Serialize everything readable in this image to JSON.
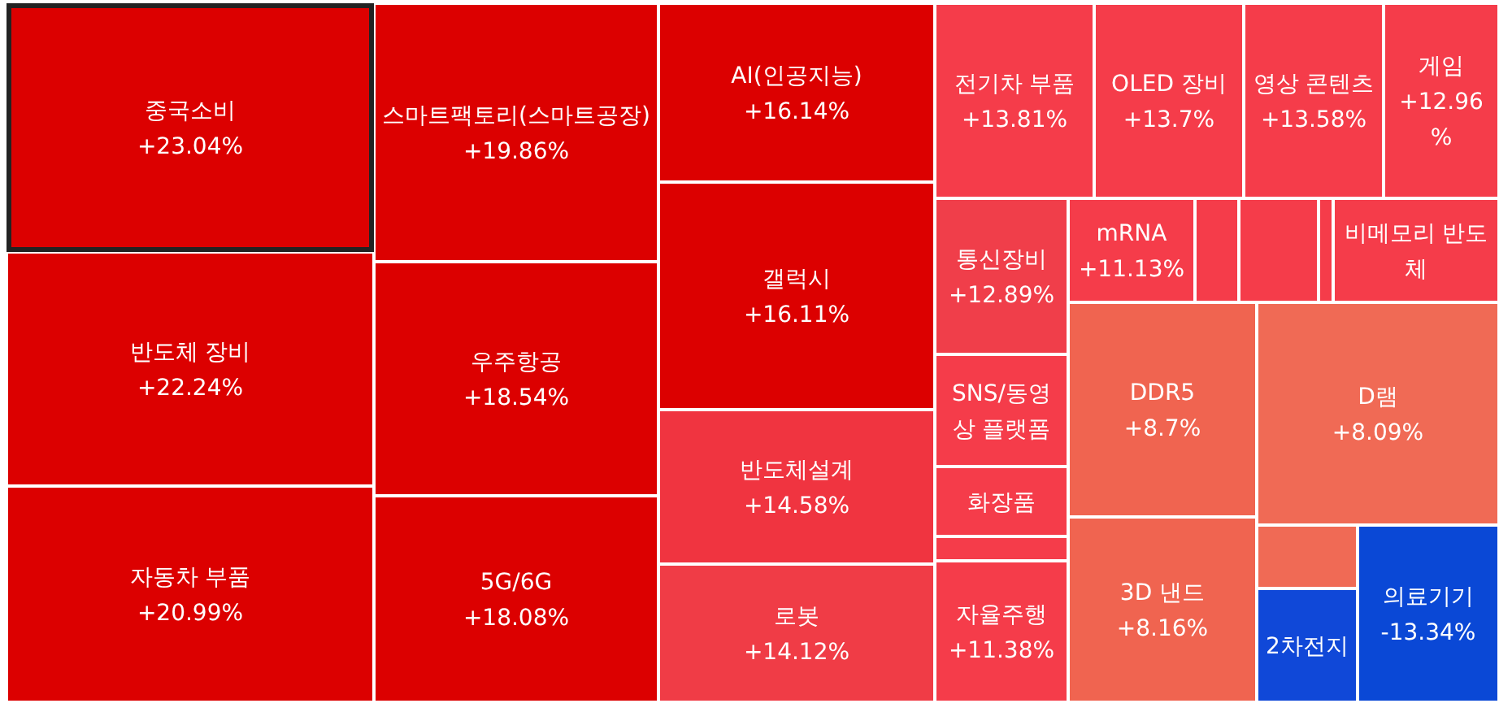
{
  "chart_data": {
    "type": "other",
    "categories": [
      "중국소비",
      "반도체 장비",
      "자동차 부품",
      "스마트팩토리(스마트공장)",
      "우주항공",
      "5G/6G",
      "AI(인공지능)",
      "갤럭시",
      "반도체설계",
      "로봇",
      "전기차 부품",
      "OLED 장비",
      "영상 콘텐츠",
      "게임",
      "통신장비",
      "mRNA",
      null,
      null,
      null,
      "비메모리 반도체",
      "SNS/동영상 플랫폼",
      "화장품",
      null,
      "자율주행",
      "DDR5",
      "D램",
      "3D 낸드",
      null,
      "2차전지",
      "의료기기"
    ],
    "values": [
      23.04,
      22.24,
      20.99,
      19.86,
      18.54,
      18.08,
      16.14,
      16.11,
      14.58,
      14.12,
      13.81,
      13.7,
      13.58,
      12.96,
      12.89,
      11.13,
      null,
      null,
      null,
      null,
      null,
      null,
      null,
      11.38,
      8.7,
      8.09,
      8.16,
      null,
      null,
      -13.34
    ],
    "value_labels": [
      "+23.04%",
      "+22.24%",
      "+20.99%",
      "+19.86%",
      "+18.54%",
      "+18.08%",
      "+16.14%",
      "+16.11%",
      "+14.58%",
      "+14.12%",
      "+13.81%",
      "+13.7%",
      "+13.58%",
      "+12.96%",
      "+12.89%",
      "+11.13%",
      null,
      null,
      null,
      null,
      null,
      null,
      null,
      "+11.38%",
      "+8.7%",
      "+8.09%",
      "+8.16%",
      null,
      null,
      "-13.34%"
    ],
    "colors": [
      "#dc0000",
      "#dc0000",
      "#dc0000",
      "#dc0000",
      "#dc0000",
      "#dc0000",
      "#dc0000",
      "#dc0000",
      "#f03440",
      "#f03c46",
      "#f53c4a",
      "#f53c4a",
      "#f53c4a",
      "#f53c4a",
      "#f03e4a",
      "#f53c4a",
      "#f53c4a",
      "#f53c4a",
      "#f53c4a",
      "#f53c4a",
      "#f53c4a",
      "#f53c4a",
      "#f53c4a",
      "#f53c4a",
      "#f06450",
      "#f06a55",
      "#f06450",
      "#f06a55",
      "#1048d8",
      "#0a48d6"
    ]
  }
}
